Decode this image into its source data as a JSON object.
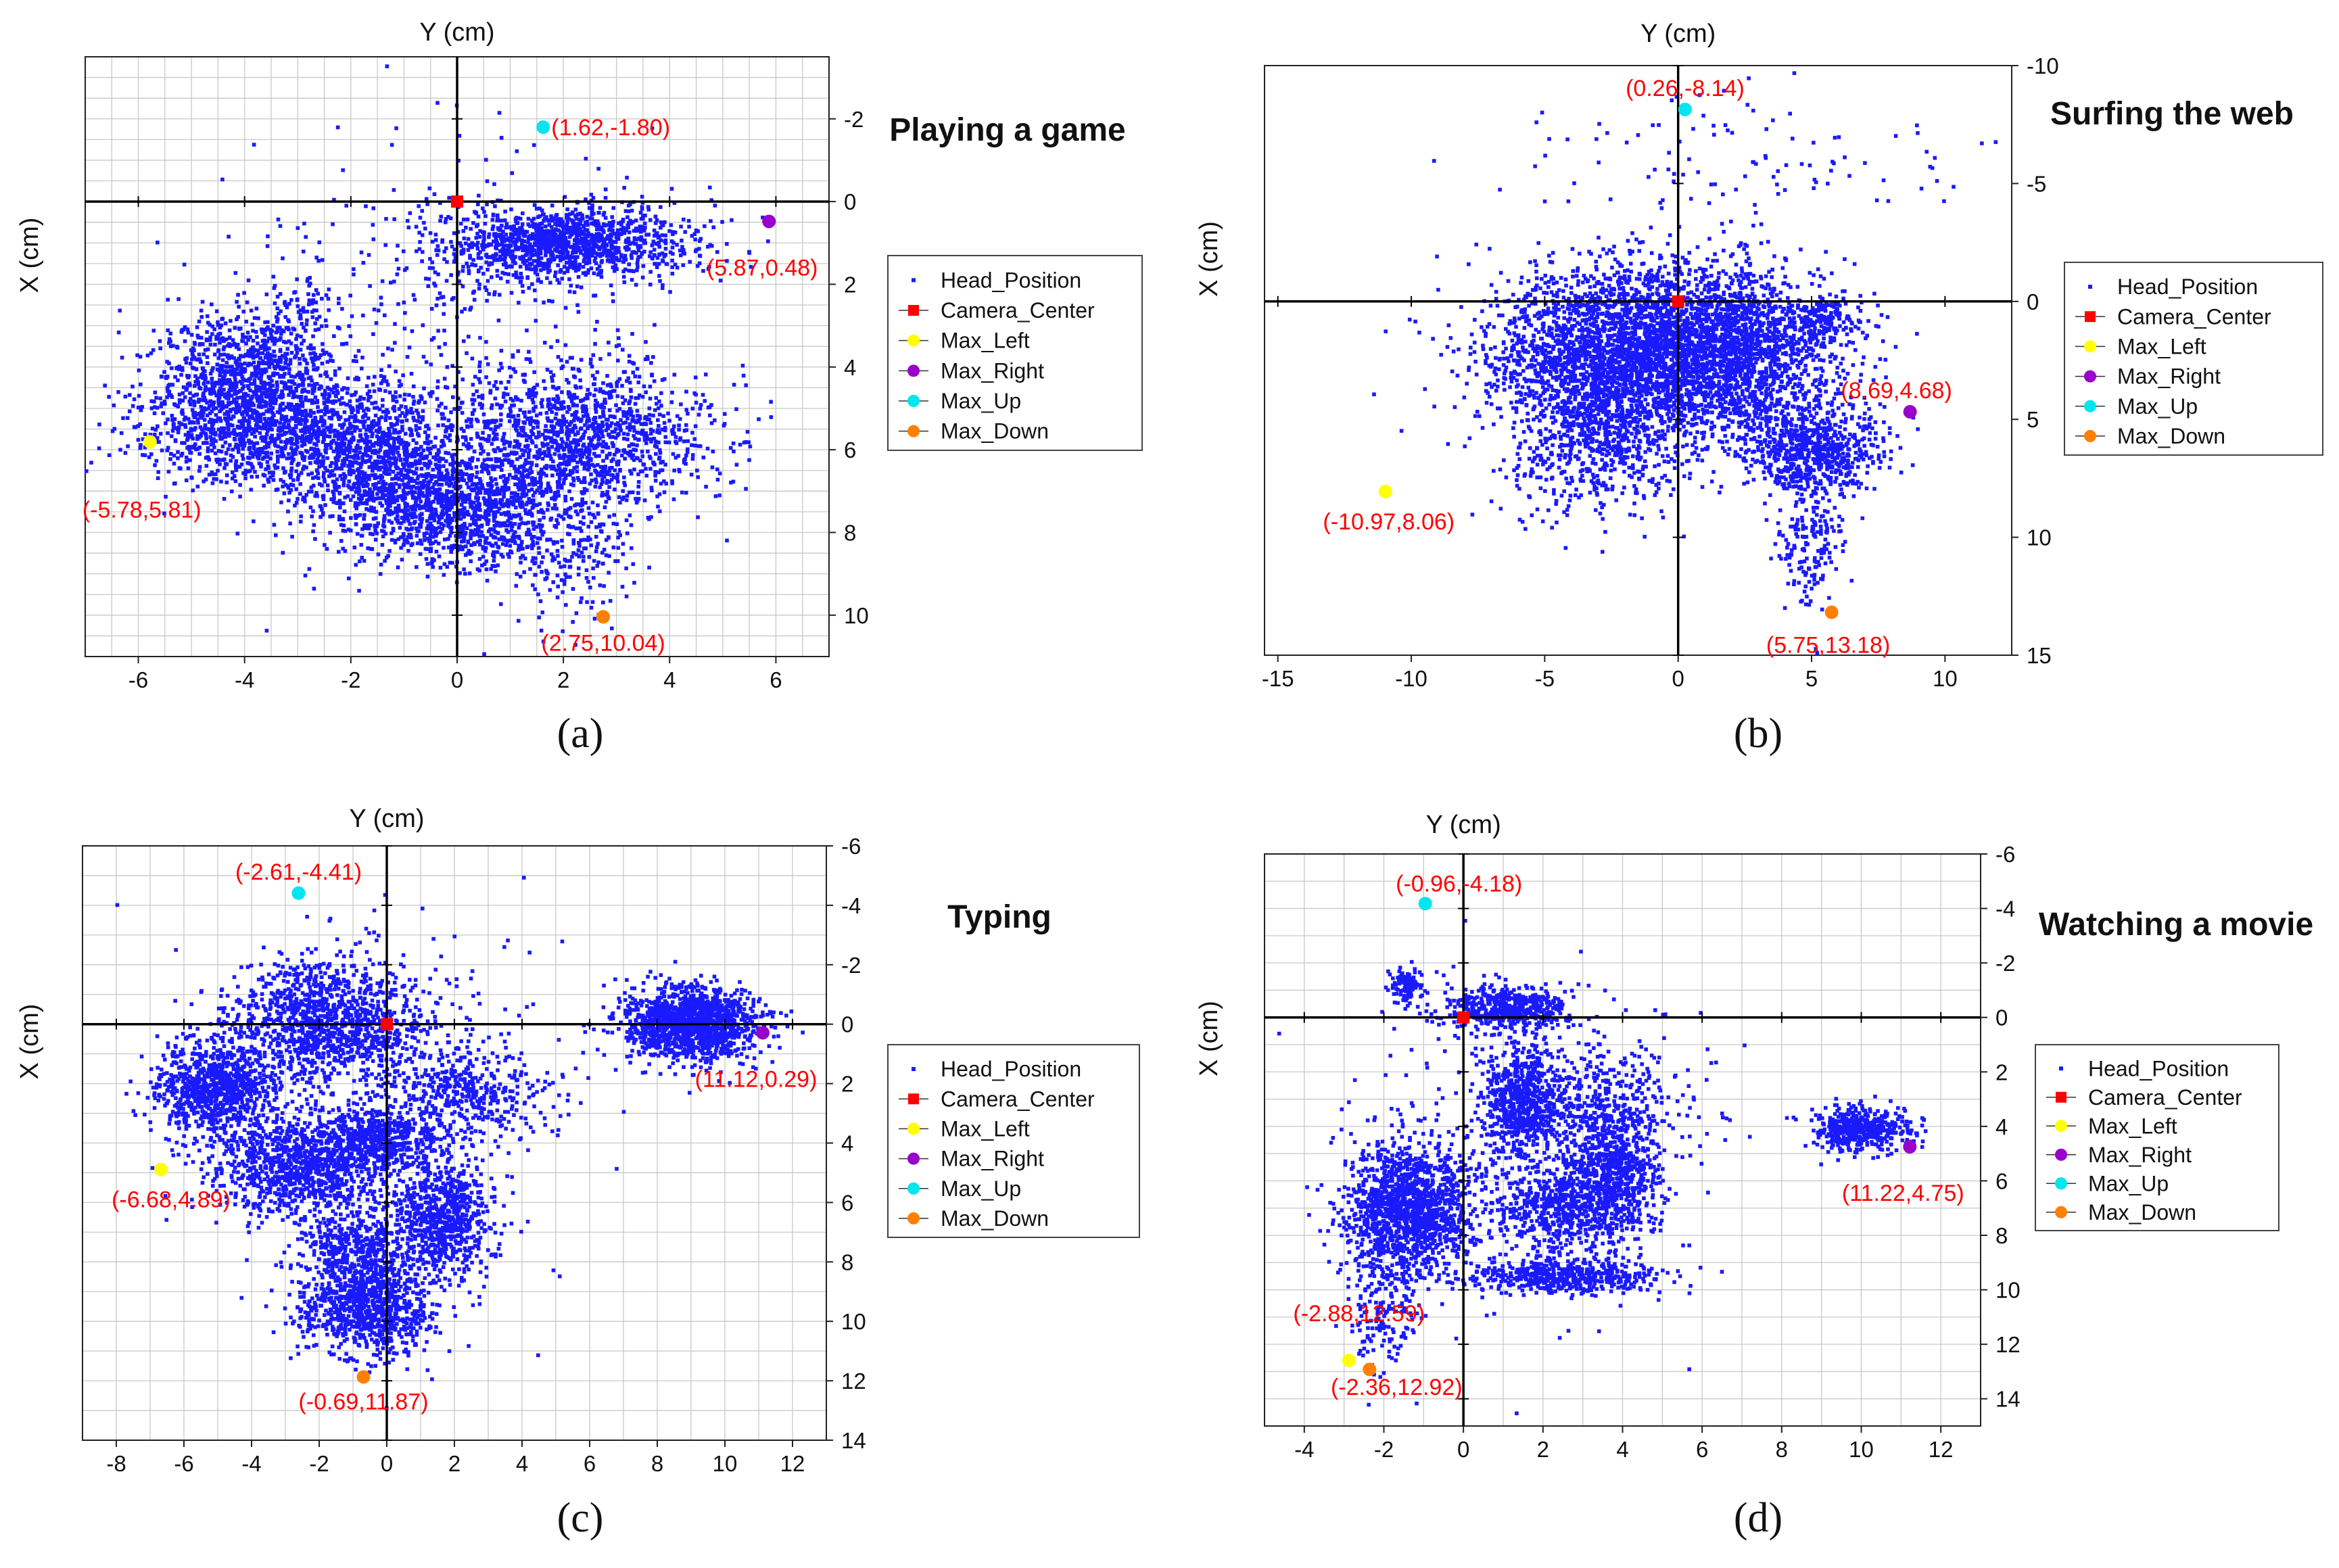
{
  "colors": {
    "head_position": "#1a1aff",
    "camera_center": "#ff0000",
    "max_left": "#ffff00",
    "max_right": "#9900cc",
    "max_up": "#00e5ee",
    "max_down": "#ff8000",
    "annotation": "#ff0000",
    "grid": "#c8c8c8",
    "axis": "#000000"
  },
  "legend_labels": [
    "Head_Position",
    "Camera_Center",
    "Max_Left",
    "Max_Right",
    "Max_Up",
    "Max_Down"
  ],
  "chart_data": [
    {
      "type": "scatter",
      "panel": "(a)",
      "title": "Playing a game",
      "xlabel": "Y (cm)",
      "ylabel": "X (cm)",
      "xlim": [
        -7,
        7
      ],
      "ylim": [
        -3.5,
        11
      ],
      "y_inverted": true,
      "x_ticks": [
        -6,
        -4,
        -2,
        0,
        2,
        4,
        6
      ],
      "y_ticks": [
        -2,
        0,
        2,
        4,
        6,
        8,
        10
      ],
      "grid_step": [
        0.5,
        0.5
      ],
      "camera_center": [
        0,
        0
      ],
      "markers": {
        "max_left": {
          "x": -5.78,
          "y": 5.81,
          "label": "(-5.78,5.81)"
        },
        "max_right": {
          "x": 5.87,
          "y": 0.48,
          "label": "(5.87,0.48)"
        },
        "max_up": {
          "x": 1.62,
          "y": -1.8,
          "label": "(1.62,-1.80)"
        },
        "max_down": {
          "x": 2.75,
          "y": 10.04,
          "label": "(2.75,10.04)"
        }
      },
      "head_position_clusters": [
        {
          "cx": 2.0,
          "cy": 1.0,
          "sx": 1.2,
          "sy": 0.45,
          "n": 1300
        },
        {
          "cx": -3.9,
          "cy": 4.2,
          "sx": 0.9,
          "sy": 0.8,
          "n": 1000
        },
        {
          "cx": -3.5,
          "cy": 5.6,
          "sx": 1.3,
          "sy": 0.6,
          "n": 900
        },
        {
          "cx": -1.5,
          "cy": 6.4,
          "sx": 0.9,
          "sy": 0.9,
          "n": 1000
        },
        {
          "cx": 0.2,
          "cy": 7.5,
          "sx": 0.9,
          "sy": 0.7,
          "n": 1000
        },
        {
          "cx": 2.3,
          "cy": 5.7,
          "sx": 1.2,
          "sy": 0.9,
          "n": 1300
        },
        {
          "cx": 2.2,
          "cy": 8.5,
          "sx": 0.6,
          "sy": 0.9,
          "n": 200
        },
        {
          "cx": -0.3,
          "cy": 3.5,
          "sx": 2.2,
          "sy": 2.5,
          "n": 400
        },
        {
          "cx": -2.9,
          "cy": 2.5,
          "sx": 0.3,
          "sy": 0.5,
          "n": 60
        }
      ]
    },
    {
      "type": "scatter",
      "panel": "(b)",
      "title": "Surfing the web",
      "xlabel": "Y (cm)",
      "ylabel": "X (cm)",
      "xlim": [
        -15.5,
        12.5
      ],
      "ylim": [
        -10,
        15
      ],
      "y_inverted": true,
      "x_ticks": [
        -15,
        -10,
        -5,
        0,
        5,
        10
      ],
      "y_ticks": [
        -10,
        -5,
        0,
        5,
        10,
        15
      ],
      "grid_step": null,
      "camera_center": [
        0,
        0
      ],
      "markers": {
        "max_left": {
          "x": -10.97,
          "y": 8.06,
          "label": "(-10.97,8.06)"
        },
        "max_right": {
          "x": 8.69,
          "y": 4.68,
          "label": "(8.69,4.68)"
        },
        "max_up": {
          "x": 0.26,
          "y": -8.14,
          "label": "(0.26,-8.14)"
        },
        "max_down": {
          "x": 5.75,
          "y": 13.18,
          "label": "(5.75,13.18)"
        }
      },
      "head_position_clusters": [
        {
          "cx": -2.0,
          "cy": 2.0,
          "sx": 2.5,
          "sy": 1.8,
          "n": 2500
        },
        {
          "cx": 2.0,
          "cy": 2.2,
          "sx": 2.0,
          "sy": 1.8,
          "n": 1800
        },
        {
          "cx": 5.0,
          "cy": 6.3,
          "sx": 1.3,
          "sy": 0.9,
          "n": 700
        },
        {
          "cx": -3.0,
          "cy": 5.5,
          "sx": 1.8,
          "sy": 1.8,
          "n": 800
        },
        {
          "cx": 5.5,
          "cy": 0.8,
          "sx": 0.9,
          "sy": 0.5,
          "n": 150
        },
        {
          "cx": 5.0,
          "cy": 10.0,
          "sx": 0.7,
          "sy": 1.6,
          "n": 200
        },
        {
          "cx": 2.0,
          "cy": -6.0,
          "sx": 5.0,
          "sy": 1.5,
          "n": 100
        }
      ]
    },
    {
      "type": "scatter",
      "panel": "(c)",
      "title": "Typing",
      "xlabel": "Y (cm)",
      "ylabel": "X (cm)",
      "xlim": [
        -9,
        13
      ],
      "ylim": [
        -6,
        14
      ],
      "y_inverted": true,
      "x_ticks": [
        -8,
        -6,
        -4,
        -2,
        0,
        2,
        4,
        6,
        8,
        10,
        12
      ],
      "y_ticks": [
        -6,
        -4,
        -2,
        0,
        2,
        4,
        6,
        8,
        10,
        12,
        14
      ],
      "grid_step": [
        1,
        1
      ],
      "camera_center": [
        0,
        0
      ],
      "markers": {
        "max_left": {
          "x": -6.68,
          "y": 4.89,
          "label": "(-6.68,4.89)"
        },
        "max_right": {
          "x": 11.12,
          "y": 0.29,
          "label": "(11.12,0.29)"
        },
        "max_up": {
          "x": -2.61,
          "y": -4.41,
          "label": "(-2.61,-4.41)"
        },
        "max_down": {
          "x": -0.69,
          "y": 11.87,
          "label": "(-0.69,11.87)"
        }
      },
      "head_position_clusters": [
        {
          "cx": 9.0,
          "cy": 0.0,
          "sx": 1.0,
          "sy": 0.6,
          "n": 1400
        },
        {
          "cx": -5.0,
          "cy": 2.2,
          "sx": 0.9,
          "sy": 0.8,
          "n": 900
        },
        {
          "cx": -1.7,
          "cy": 0.0,
          "sx": 1.5,
          "sy": 1.0,
          "n": 1200
        },
        {
          "cx": -2.5,
          "cy": 4.8,
          "sx": 1.3,
          "sy": 0.8,
          "n": 1000
        },
        {
          "cx": -0.3,
          "cy": 3.8,
          "sx": 1.0,
          "sy": 0.5,
          "n": 500
        },
        {
          "cx": 1.6,
          "cy": 6.5,
          "sx": 0.8,
          "sy": 1.0,
          "n": 800
        },
        {
          "cx": -0.6,
          "cy": 9.5,
          "sx": 1.0,
          "sy": 0.8,
          "n": 900
        },
        {
          "cx": -1.0,
          "cy": 7.5,
          "sx": 0.8,
          "sy": 0.7,
          "n": 400
        },
        {
          "cx": 2.5,
          "cy": 2.3,
          "sx": 1.2,
          "sy": 0.7,
          "n": 400
        },
        {
          "cx": 0.0,
          "cy": 2.0,
          "sx": 2.5,
          "sy": 3.0,
          "n": 300
        }
      ]
    },
    {
      "type": "scatter",
      "panel": "(d)",
      "title": "Watching a movie",
      "xlabel": "Y (cm)",
      "ylabel": "X (cm)",
      "xlim": [
        -5,
        13
      ],
      "ylim": [
        -6,
        15
      ],
      "y_inverted": true,
      "x_ticks": [
        -4,
        -2,
        0,
        2,
        4,
        6,
        8,
        10,
        12
      ],
      "y_ticks": [
        -6,
        -4,
        -2,
        0,
        2,
        4,
        6,
        8,
        10,
        12,
        14
      ],
      "grid_step": [
        1,
        1
      ],
      "camera_center": [
        0,
        0
      ],
      "markers": {
        "max_left": {
          "x": -2.88,
          "y": 12.59,
          "label": "(-2.88,12.59)"
        },
        "max_right": {
          "x": 11.22,
          "y": 4.75,
          "label": "(11.22,4.75)"
        },
        "max_up": {
          "x": -0.96,
          "y": -4.18,
          "label": "(-0.96,-4.18)"
        },
        "max_down": {
          "x": -2.36,
          "y": 12.92,
          "label": "(-2.36,12.92)"
        }
      },
      "head_position_clusters": [
        {
          "cx": 10.0,
          "cy": 4.1,
          "sx": 0.6,
          "sy": 0.4,
          "n": 500
        },
        {
          "cx": -1.4,
          "cy": 7.0,
          "sx": 0.8,
          "sy": 1.2,
          "n": 1400
        },
        {
          "cx": 1.5,
          "cy": 3.0,
          "sx": 0.5,
          "sy": 1.0,
          "n": 700
        },
        {
          "cx": 1.2,
          "cy": -0.3,
          "sx": 0.8,
          "sy": 0.4,
          "n": 500
        },
        {
          "cx": -1.4,
          "cy": -1.2,
          "sx": 0.2,
          "sy": 0.3,
          "n": 120
        },
        {
          "cx": 3.8,
          "cy": 5.5,
          "sx": 0.6,
          "sy": 1.2,
          "n": 700
        },
        {
          "cx": 2.5,
          "cy": 7.0,
          "sx": 0.9,
          "sy": 0.8,
          "n": 600
        },
        {
          "cx": 2.5,
          "cy": 9.5,
          "sx": 1.2,
          "sy": 0.3,
          "n": 500
        },
        {
          "cx": -2.0,
          "cy": 10.5,
          "sx": 0.5,
          "sy": 1.2,
          "n": 200
        },
        {
          "cx": 3.5,
          "cy": 3.0,
          "sx": 1.0,
          "sy": 1.0,
          "n": 300
        },
        {
          "cx": 1.5,
          "cy": 5.0,
          "sx": 2.5,
          "sy": 3.0,
          "n": 300
        }
      ]
    }
  ]
}
